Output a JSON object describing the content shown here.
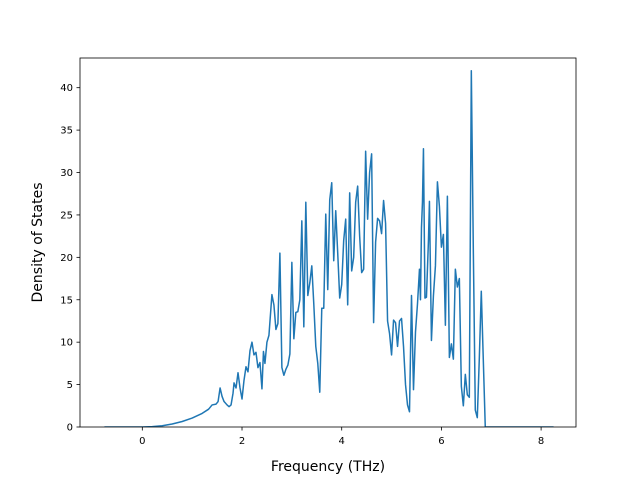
{
  "chart_data": {
    "type": "line",
    "xlabel": "Frequency (THz)",
    "ylabel": "Density of States",
    "xlim": [
      -1.25,
      8.7
    ],
    "ylim": [
      0,
      43.5
    ],
    "x_ticks": [
      0,
      2,
      4,
      6,
      8
    ],
    "y_ticks": [
      0,
      5,
      10,
      15,
      20,
      25,
      30,
      35,
      40
    ],
    "grid": false,
    "series": [
      {
        "color": "#1f77b4",
        "points": [
          [
            -0.76,
            0.0
          ],
          [
            -0.2,
            0.0
          ],
          [
            0.0,
            0.0
          ],
          [
            0.2,
            0.05
          ],
          [
            0.4,
            0.15
          ],
          [
            0.6,
            0.35
          ],
          [
            0.8,
            0.65
          ],
          [
            1.0,
            1.05
          ],
          [
            1.2,
            1.6
          ],
          [
            1.33,
            2.1
          ],
          [
            1.4,
            2.6
          ],
          [
            1.48,
            2.7
          ],
          [
            1.52,
            3.0
          ],
          [
            1.56,
            4.6
          ],
          [
            1.6,
            3.6
          ],
          [
            1.64,
            3.0
          ],
          [
            1.7,
            2.6
          ],
          [
            1.74,
            2.4
          ],
          [
            1.78,
            2.6
          ],
          [
            1.82,
            4.0
          ],
          [
            1.84,
            5.2
          ],
          [
            1.88,
            4.6
          ],
          [
            1.92,
            6.4
          ],
          [
            1.96,
            4.6
          ],
          [
            2.0,
            3.3
          ],
          [
            2.04,
            5.5
          ],
          [
            2.08,
            7.1
          ],
          [
            2.12,
            6.5
          ],
          [
            2.16,
            9.0
          ],
          [
            2.2,
            10.0
          ],
          [
            2.24,
            8.5
          ],
          [
            2.28,
            8.8
          ],
          [
            2.32,
            7.0
          ],
          [
            2.36,
            7.6
          ],
          [
            2.4,
            4.5
          ],
          [
            2.43,
            8.9
          ],
          [
            2.46,
            7.5
          ],
          [
            2.5,
            10.0
          ],
          [
            2.54,
            10.8
          ],
          [
            2.6,
            15.6
          ],
          [
            2.64,
            14.4
          ],
          [
            2.68,
            11.5
          ],
          [
            2.72,
            12.2
          ],
          [
            2.76,
            20.5
          ],
          [
            2.8,
            7.0
          ],
          [
            2.84,
            6.1
          ],
          [
            2.88,
            6.8
          ],
          [
            2.92,
            7.3
          ],
          [
            2.96,
            8.6
          ],
          [
            3.0,
            19.4
          ],
          [
            3.04,
            10.4
          ],
          [
            3.08,
            13.5
          ],
          [
            3.12,
            13.6
          ],
          [
            3.16,
            15.0
          ],
          [
            3.2,
            24.3
          ],
          [
            3.24,
            11.8
          ],
          [
            3.28,
            26.5
          ],
          [
            3.32,
            15.5
          ],
          [
            3.36,
            17.0
          ],
          [
            3.4,
            19.0
          ],
          [
            3.44,
            14.5
          ],
          [
            3.48,
            9.5
          ],
          [
            3.52,
            7.5
          ],
          [
            3.56,
            4.1
          ],
          [
            3.6,
            14.0
          ],
          [
            3.64,
            14.0
          ],
          [
            3.68,
            25.1
          ],
          [
            3.72,
            16.2
          ],
          [
            3.76,
            26.8
          ],
          [
            3.8,
            28.8
          ],
          [
            3.84,
            19.6
          ],
          [
            3.88,
            25.5
          ],
          [
            3.92,
            20.5
          ],
          [
            3.96,
            15.2
          ],
          [
            4.0,
            16.8
          ],
          [
            4.04,
            22.0
          ],
          [
            4.08,
            24.5
          ],
          [
            4.12,
            14.4
          ],
          [
            4.16,
            27.6
          ],
          [
            4.2,
            18.4
          ],
          [
            4.24,
            20.0
          ],
          [
            4.28,
            26.5
          ],
          [
            4.32,
            28.4
          ],
          [
            4.36,
            22.5
          ],
          [
            4.4,
            18.2
          ],
          [
            4.44,
            18.6
          ],
          [
            4.48,
            32.5
          ],
          [
            4.52,
            24.5
          ],
          [
            4.56,
            30.0
          ],
          [
            4.6,
            32.2
          ],
          [
            4.64,
            12.3
          ],
          [
            4.68,
            21.8
          ],
          [
            4.72,
            24.6
          ],
          [
            4.76,
            24.3
          ],
          [
            4.8,
            22.8
          ],
          [
            4.84,
            26.7
          ],
          [
            4.88,
            24.0
          ],
          [
            4.92,
            12.5
          ],
          [
            4.96,
            11.0
          ],
          [
            5.0,
            8.5
          ],
          [
            5.04,
            12.6
          ],
          [
            5.08,
            12.3
          ],
          [
            5.12,
            9.5
          ],
          [
            5.16,
            12.5
          ],
          [
            5.2,
            12.8
          ],
          [
            5.24,
            9.5
          ],
          [
            5.28,
            5.0
          ],
          [
            5.32,
            2.6
          ],
          [
            5.36,
            1.8
          ],
          [
            5.4,
            15.5
          ],
          [
            5.44,
            4.4
          ],
          [
            5.48,
            11.2
          ],
          [
            5.52,
            14.5
          ],
          [
            5.56,
            18.6
          ],
          [
            5.58,
            15.0
          ],
          [
            5.6,
            23.5
          ],
          [
            5.62,
            26.5
          ],
          [
            5.64,
            32.8
          ],
          [
            5.67,
            15.2
          ],
          [
            5.7,
            15.3
          ],
          [
            5.74,
            22.0
          ],
          [
            5.76,
            26.6
          ],
          [
            5.8,
            10.2
          ],
          [
            5.84,
            15.5
          ],
          [
            5.88,
            19.0
          ],
          [
            5.92,
            28.9
          ],
          [
            5.96,
            26.0
          ],
          [
            6.0,
            21.2
          ],
          [
            6.04,
            22.7
          ],
          [
            6.08,
            12.0
          ],
          [
            6.12,
            27.2
          ],
          [
            6.16,
            8.2
          ],
          [
            6.2,
            9.8
          ],
          [
            6.24,
            8.0
          ],
          [
            6.28,
            18.6
          ],
          [
            6.32,
            16.5
          ],
          [
            6.36,
            17.5
          ],
          [
            6.4,
            4.8
          ],
          [
            6.44,
            2.5
          ],
          [
            6.48,
            6.2
          ],
          [
            6.52,
            3.8
          ],
          [
            6.56,
            3.5
          ],
          [
            6.6,
            42.0
          ],
          [
            6.64,
            21.0
          ],
          [
            6.68,
            2.0
          ],
          [
            6.72,
            1.1
          ],
          [
            6.76,
            8.0
          ],
          [
            6.8,
            16.0
          ],
          [
            6.84,
            8.0
          ],
          [
            6.88,
            0.0
          ],
          [
            7.0,
            0.0
          ],
          [
            7.6,
            0.0
          ],
          [
            8.25,
            0.0
          ]
        ]
      }
    ]
  }
}
